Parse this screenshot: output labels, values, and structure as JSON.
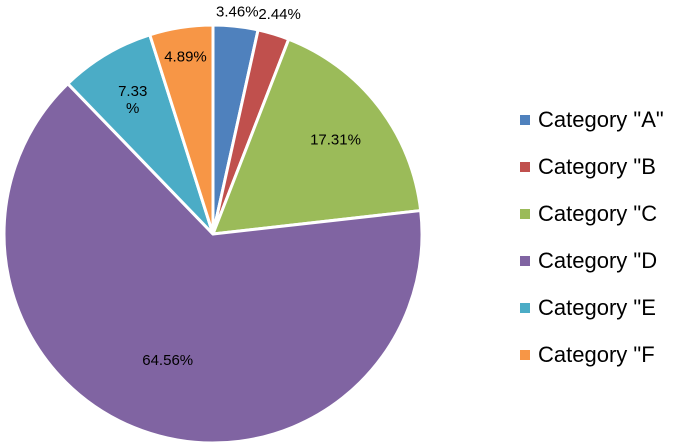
{
  "chart_data": {
    "type": "pie",
    "title": "",
    "legend_position": "right",
    "slices": [
      {
        "label": "Category \"A\"",
        "value": 3.46,
        "value_label": "3.46%",
        "color": "#4F81BD"
      },
      {
        "label": "Category \"B",
        "value": 2.44,
        "value_label": "2.44%",
        "color": "#C0504D"
      },
      {
        "label": "Category \"C",
        "value": 17.31,
        "value_label": "17.31%",
        "color": "#9BBB59"
      },
      {
        "label": "Category \"D",
        "value": 64.56,
        "value_label": "64.56%",
        "color": "#8064A2"
      },
      {
        "label": "Category \"E",
        "value": 7.33,
        "value_label": "7.33%",
        "value_label_lines": [
          "7.33",
          "%"
        ],
        "color": "#4BACC6"
      },
      {
        "label": "Category \"F",
        "value": 4.89,
        "value_label": "4.89%",
        "color": "#F79646"
      }
    ]
  }
}
